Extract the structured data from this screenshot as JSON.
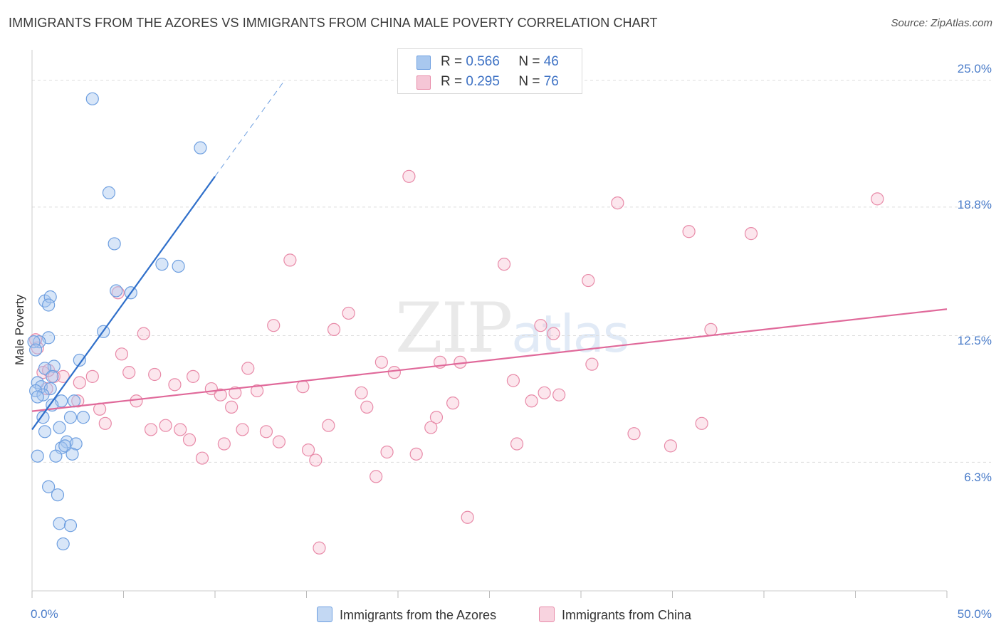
{
  "title": "IMMIGRANTS FROM THE AZORES VS IMMIGRANTS FROM CHINA MALE POVERTY CORRELATION CHART",
  "source": "Source: ZipAtlas.com",
  "watermark": {
    "main": "ZIP",
    "sub": "atlas"
  },
  "legend_top": [
    {
      "r_label": "R =",
      "r_value": "0.566",
      "n_label": "N =",
      "n_value": "46"
    },
    {
      "r_label": "R =",
      "r_value": "0.295",
      "n_label": "N =",
      "n_value": "76"
    }
  ],
  "legend_bottom": [
    "Immigrants from the Azores",
    "Immigrants from China"
  ],
  "colors": {
    "azores_fill": "#a9c8ef",
    "azores_stroke": "#6e9fe0",
    "azores_line": "#2f6fca",
    "china_fill": "#f5b8cc",
    "china_stroke": "#e88aa8",
    "china_line": "#e0699a",
    "tick_text": "#4a7cc9",
    "grid": "#dddddd"
  },
  "chart_data": {
    "type": "scatter",
    "title": "IMMIGRANTS FROM THE AZORES VS IMMIGRANTS FROM CHINA MALE POVERTY CORRELATION CHART",
    "xlabel": "",
    "ylabel": "Male Poverty",
    "xlim": [
      0,
      50
    ],
    "ylim": [
      0,
      26.5
    ],
    "x_tick_labels": [
      "0.0%",
      "50.0%"
    ],
    "y_ticks": [
      6.3,
      12.5,
      18.8,
      25.0
    ],
    "y_tick_labels": [
      "6.3%",
      "12.5%",
      "18.8%",
      "25.0%"
    ],
    "grid": true,
    "series": [
      {
        "name": "Immigrants from the Azores",
        "R": 0.566,
        "N": 46,
        "trend": {
          "x0": 0.0,
          "y0": 7.9,
          "x1": 10.0,
          "y1": 20.3,
          "dash_to_x": 13.8,
          "dash_to_y": 25.0
        },
        "points": [
          [
            3.3,
            24.1
          ],
          [
            9.2,
            21.7
          ],
          [
            4.2,
            19.5
          ],
          [
            4.5,
            17.0
          ],
          [
            7.1,
            16.0
          ],
          [
            8.0,
            15.9
          ],
          [
            4.6,
            14.7
          ],
          [
            5.4,
            14.6
          ],
          [
            0.7,
            14.2
          ],
          [
            1.0,
            14.4
          ],
          [
            0.9,
            14.0
          ],
          [
            3.9,
            12.7
          ],
          [
            0.9,
            12.4
          ],
          [
            0.4,
            12.2
          ],
          [
            0.1,
            12.2
          ],
          [
            2.6,
            11.3
          ],
          [
            1.2,
            11.0
          ],
          [
            0.7,
            10.9
          ],
          [
            1.1,
            10.5
          ],
          [
            0.3,
            10.2
          ],
          [
            0.5,
            10.0
          ],
          [
            1.0,
            9.9
          ],
          [
            0.2,
            9.8
          ],
          [
            0.6,
            9.6
          ],
          [
            0.3,
            9.5
          ],
          [
            1.6,
            9.3
          ],
          [
            1.1,
            9.1
          ],
          [
            2.3,
            9.3
          ],
          [
            2.8,
            8.5
          ],
          [
            2.1,
            8.5
          ],
          [
            0.6,
            8.5
          ],
          [
            1.5,
            8.0
          ],
          [
            0.7,
            7.8
          ],
          [
            1.9,
            7.3
          ],
          [
            2.4,
            7.2
          ],
          [
            1.6,
            7.0
          ],
          [
            1.8,
            7.1
          ],
          [
            2.2,
            6.7
          ],
          [
            0.3,
            6.6
          ],
          [
            1.3,
            6.6
          ],
          [
            0.9,
            5.1
          ],
          [
            1.4,
            4.7
          ],
          [
            1.5,
            3.3
          ],
          [
            2.1,
            3.2
          ],
          [
            1.7,
            2.3
          ],
          [
            0.2,
            11.8
          ]
        ]
      },
      {
        "name": "Immigrants from China",
        "R": 0.295,
        "N": 76,
        "trend": {
          "x0": 0.0,
          "y0": 8.8,
          "x1": 50.0,
          "y1": 13.8
        },
        "points": [
          [
            0.2,
            12.3
          ],
          [
            0.6,
            10.7
          ],
          [
            1.2,
            10.5
          ],
          [
            0.8,
            9.9
          ],
          [
            1.7,
            10.5
          ],
          [
            2.5,
            9.3
          ],
          [
            2.6,
            10.2
          ],
          [
            3.3,
            10.5
          ],
          [
            3.7,
            8.9
          ],
          [
            4.0,
            8.2
          ],
          [
            4.7,
            14.6
          ],
          [
            4.9,
            11.6
          ],
          [
            5.3,
            10.7
          ],
          [
            5.7,
            9.3
          ],
          [
            6.1,
            12.6
          ],
          [
            6.5,
            7.9
          ],
          [
            6.7,
            10.6
          ],
          [
            7.3,
            8.1
          ],
          [
            7.8,
            10.1
          ],
          [
            8.1,
            7.9
          ],
          [
            8.6,
            7.4
          ],
          [
            8.8,
            10.5
          ],
          [
            9.3,
            6.5
          ],
          [
            9.8,
            9.9
          ],
          [
            10.3,
            9.6
          ],
          [
            10.5,
            7.2
          ],
          [
            10.9,
            9.0
          ],
          [
            11.1,
            9.7
          ],
          [
            11.5,
            7.9
          ],
          [
            11.8,
            10.9
          ],
          [
            12.3,
            9.8
          ],
          [
            12.8,
            7.8
          ],
          [
            13.2,
            13.0
          ],
          [
            13.5,
            7.3
          ],
          [
            14.1,
            16.2
          ],
          [
            14.8,
            10.0
          ],
          [
            15.1,
            6.9
          ],
          [
            15.5,
            6.4
          ],
          [
            15.7,
            2.1
          ],
          [
            16.2,
            8.1
          ],
          [
            16.5,
            12.8
          ],
          [
            17.3,
            13.6
          ],
          [
            18.0,
            9.7
          ],
          [
            18.3,
            9.0
          ],
          [
            18.8,
            5.6
          ],
          [
            19.1,
            11.2
          ],
          [
            19.4,
            6.8
          ],
          [
            19.8,
            10.7
          ],
          [
            20.6,
            20.3
          ],
          [
            21.0,
            6.7
          ],
          [
            21.8,
            8.0
          ],
          [
            22.1,
            8.5
          ],
          [
            22.3,
            11.2
          ],
          [
            23.0,
            9.2
          ],
          [
            23.4,
            11.2
          ],
          [
            23.8,
            3.6
          ],
          [
            25.8,
            16.0
          ],
          [
            26.3,
            10.3
          ],
          [
            26.5,
            7.2
          ],
          [
            27.3,
            9.3
          ],
          [
            27.8,
            13.0
          ],
          [
            28.0,
            9.7
          ],
          [
            28.5,
            12.6
          ],
          [
            28.8,
            9.6
          ],
          [
            30.4,
            15.2
          ],
          [
            30.6,
            11.1
          ],
          [
            32.0,
            19.0
          ],
          [
            32.9,
            7.7
          ],
          [
            34.9,
            7.1
          ],
          [
            35.9,
            17.6
          ],
          [
            36.6,
            8.2
          ],
          [
            37.1,
            12.8
          ],
          [
            39.3,
            17.5
          ],
          [
            46.2,
            19.2
          ],
          [
            0.9,
            10.8
          ],
          [
            0.3,
            11.9
          ]
        ]
      }
    ]
  }
}
